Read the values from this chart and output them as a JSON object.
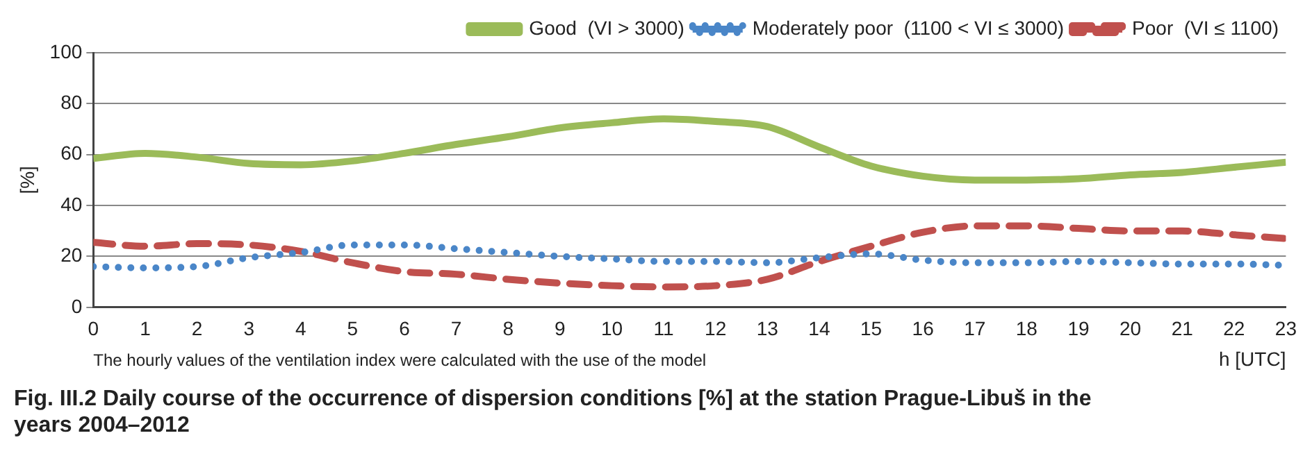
{
  "chart_data": {
    "type": "line",
    "title": "Fig. III.2  Daily course of the occurrence of dispersion conditions [%] at the station Prague-Libuš in the years 2004–2012",
    "xlabel": "h [UTC]",
    "ylabel": "[%]",
    "annotations": [
      "The hourly values of the ventilation index were calculated with the use of the model"
    ],
    "x": [
      0,
      1,
      2,
      3,
      4,
      5,
      6,
      7,
      8,
      9,
      10,
      11,
      12,
      13,
      14,
      15,
      16,
      17,
      18,
      19,
      20,
      21,
      22,
      23
    ],
    "xlim": [
      0,
      23
    ],
    "xticks": [
      0,
      1,
      2,
      3,
      4,
      5,
      6,
      7,
      8,
      9,
      10,
      11,
      12,
      13,
      14,
      15,
      16,
      17,
      18,
      19,
      20,
      21,
      22,
      23
    ],
    "ylim": [
      0,
      100
    ],
    "yticks": [
      0,
      20,
      40,
      60,
      80,
      100
    ],
    "grid": "y",
    "legend": "top right",
    "marker": "none",
    "series": [
      {
        "name": "Good  (VI > 3000)",
        "color": "#9bbb59",
        "line_style": "solid",
        "values": [
          58.5,
          60.5,
          59,
          56.5,
          56,
          57.5,
          60.5,
          64,
          67,
          70.5,
          72.5,
          74,
          73,
          71,
          63,
          55.5,
          51.5,
          50,
          50,
          50.5,
          52,
          53,
          55,
          57
        ]
      },
      {
        "name": "Moderately poor  (1100 < VI ≤ 3000)",
        "color": "#4a86c8",
        "line_style": "dotted",
        "values": [
          16,
          15.5,
          16,
          19.5,
          21.5,
          24.5,
          24.5,
          23,
          21.5,
          20,
          19,
          18,
          18,
          17.5,
          19.5,
          21,
          18.5,
          17.5,
          17.5,
          18,
          17.5,
          17,
          17,
          16.5
        ]
      },
      {
        "name": "Poor  (VI ≤ 1100)",
        "color": "#c0504d",
        "line_style": "dashed",
        "values": [
          25.5,
          24,
          25,
          24.5,
          22,
          17.5,
          14,
          13,
          11,
          9.5,
          8.5,
          8,
          8.5,
          11,
          18,
          24,
          29.5,
          32,
          32,
          31,
          30,
          30,
          28.5,
          27
        ]
      }
    ]
  }
}
